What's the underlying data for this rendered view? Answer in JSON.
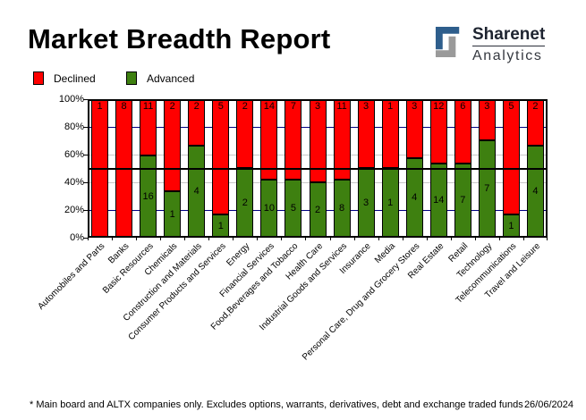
{
  "header": {
    "title": "Market Breadth Report"
  },
  "logo": {
    "brand": "Sharenet",
    "sub": "Analytics",
    "icon": "sharenet-square-s-icon",
    "colors": {
      "blue": "#2e5e8c",
      "gray": "#9a9a9a"
    }
  },
  "legend": {
    "items": [
      {
        "label": "Declined",
        "color": "#ff0000"
      },
      {
        "label": "Advanced",
        "color": "#3e8010"
      }
    ]
  },
  "chart_data": {
    "type": "bar",
    "stacking": "percent",
    "title": "Market Breadth Report",
    "xlabel": "",
    "ylabel": "",
    "ylim": [
      0,
      100
    ],
    "yticks": [
      "0%",
      "20%",
      "40%",
      "60%",
      "80%",
      "100%"
    ],
    "legend_position": "top-left",
    "grid": {
      "lines": [
        {
          "pct": 80,
          "color": "#000080",
          "width": 1,
          "overlay": false
        },
        {
          "pct": 60,
          "color": "#c8c8c8",
          "width": 1,
          "overlay": false
        },
        {
          "pct": 50,
          "color": "#000000",
          "width": 2,
          "overlay": true
        },
        {
          "pct": 40,
          "color": "#c8c8c8",
          "width": 1,
          "overlay": false
        },
        {
          "pct": 20,
          "color": "#000080",
          "width": 1,
          "overlay": false
        }
      ]
    },
    "categories": [
      "Automobiles and Parts",
      "Banks",
      "Basic Resources",
      "Chemicals",
      "Construction and Materials",
      "Consumer Products and Services",
      "Energy",
      "Financial Services",
      "Food,Beverages and Tobacco",
      "Health Care",
      "Industrial Goods and Services",
      "Insurance",
      "Media",
      "Personal Care, Drug and Grocery Stores",
      "Real Estate",
      "Retail",
      "Technology",
      "Telecommunications",
      "Travel and Leisure"
    ],
    "series": [
      {
        "name": "Declined",
        "color": "#ff0000",
        "values": [
          1,
          8,
          11,
          2,
          2,
          5,
          2,
          14,
          7,
          3,
          11,
          3,
          1,
          3,
          12,
          6,
          3,
          5,
          2
        ]
      },
      {
        "name": "Advanced",
        "color": "#3e8010",
        "values": [
          0,
          0,
          16,
          1,
          4,
          1,
          2,
          10,
          5,
          2,
          8,
          3,
          1,
          4,
          14,
          7,
          7,
          1,
          4
        ]
      }
    ],
    "bar_labels": "segment counts printed on bars"
  },
  "footer": {
    "note": "* Main board and ALTX companies only. Excludes options, warrants, derivatives, debt and exchange traded funds",
    "date": "26/06/2024"
  }
}
